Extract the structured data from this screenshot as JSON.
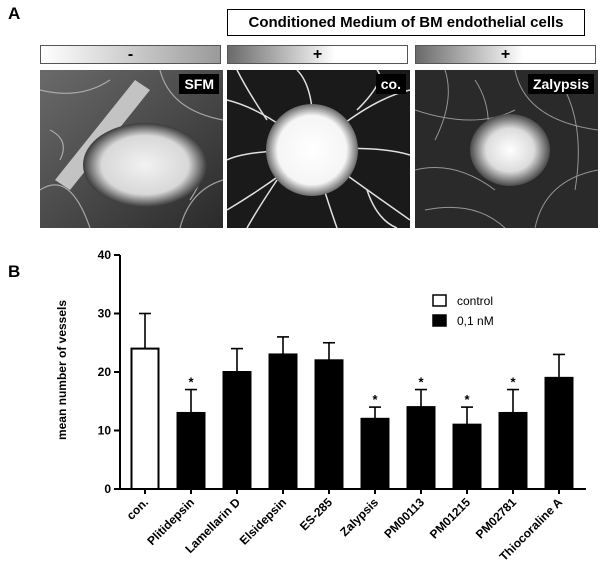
{
  "panels": {
    "a_label": "A",
    "b_label": "B"
  },
  "header": {
    "title": "Conditioned  Medium of BM endothelial cells"
  },
  "conditions": [
    {
      "symbol": "-",
      "photo_label": "SFM"
    },
    {
      "symbol": "+",
      "photo_label": "co."
    },
    {
      "symbol": "+",
      "photo_label": "Zalypsis"
    }
  ],
  "chart_data": {
    "type": "bar",
    "ylabel": "mean number of vessels",
    "ylim": [
      0,
      40
    ],
    "yticks": [
      0,
      10,
      20,
      30,
      40
    ],
    "categories": [
      "con.",
      "Plitidepsin",
      "Lamellarin D",
      "Elsidepsin",
      "ES-285",
      "Zalypsis",
      "PM00113",
      "PM01215",
      "PM02781",
      "Thiocoraline A"
    ],
    "values": [
      24,
      13,
      20,
      23,
      22,
      12,
      14,
      11,
      13,
      19
    ],
    "errors": [
      6,
      4,
      4,
      3,
      3,
      2,
      3,
      3,
      4,
      4
    ],
    "fill": [
      "white",
      "black",
      "black",
      "black",
      "black",
      "black",
      "black",
      "black",
      "black",
      "black"
    ],
    "significance": [
      "",
      "*",
      "",
      "",
      "",
      "*",
      "*",
      "*",
      "*",
      ""
    ],
    "legend": [
      {
        "label": "control",
        "fill": "white"
      },
      {
        "label": "0,1 nM",
        "fill": "black"
      }
    ],
    "legend_position": "top-right",
    "grid": false
  }
}
